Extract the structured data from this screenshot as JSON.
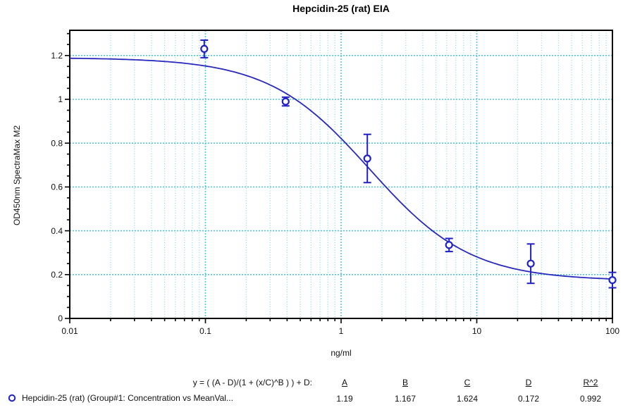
{
  "title": "Hepcidin-25 (rat) EIA",
  "colors": {
    "series": "#2121C6",
    "curve": "#2828BE",
    "grid_minor": "#8ADAEC",
    "grid_major": "#55C9E2",
    "axis": "#000000",
    "background": "#FFFFFF",
    "text": "#111111"
  },
  "chart_data": {
    "type": "scatter",
    "title": "Hepcidin-25 (rat) EIA",
    "xlabel": "ng/ml",
    "ylabel": "OD450nm SpectraMax M2",
    "x_scale": "log",
    "xlim": [
      0.01,
      100
    ],
    "ylim": [
      0,
      1.315
    ],
    "y_major_step": 0.2,
    "y_minor_step": 0.05,
    "x_tick_labels": [
      "0.01",
      "0.1",
      "1",
      "10",
      "100"
    ],
    "x_tick_values": [
      0.01,
      0.1,
      1,
      10,
      100
    ],
    "y_tick_labels": [
      "0",
      "0.2",
      "0.4",
      "0.6",
      "0.8",
      "1",
      "1.2"
    ],
    "y_tick_values": [
      0,
      0.2,
      0.4,
      0.6,
      0.8,
      1,
      1.2
    ],
    "grid": "on",
    "series": [
      {
        "name": "Hepcidin-25 (rat) (Group#1: Concentration vs MeanVal...",
        "marker": "open-circle",
        "points": [
          {
            "x": 0.098,
            "y": 1.23,
            "err": 0.04
          },
          {
            "x": 0.39,
            "y": 0.99,
            "err": 0.02
          },
          {
            "x": 1.56,
            "y": 0.73,
            "err": 0.11
          },
          {
            "x": 6.25,
            "y": 0.335,
            "err": 0.03
          },
          {
            "x": 25,
            "y": 0.25,
            "err": 0.09
          },
          {
            "x": 100,
            "y": 0.175,
            "err": 0.035
          }
        ],
        "fit": {
          "model": "4PL",
          "A": 1.19,
          "B": 1.167,
          "C": 1.624,
          "D": 0.172,
          "R2": 0.992
        }
      }
    ]
  },
  "legend": {
    "formula": "y = ( (A - D)/(1 + (x/C)^B ) ) + D:",
    "series_label": "Hepcidin-25 (rat) (Group#1: Concentration vs MeanVal...",
    "series_marker_icon": "open-circle-icon",
    "param_headers": [
      "A",
      "B",
      "C",
      "D",
      "R^2"
    ],
    "param_values": [
      "1.19",
      "1.167",
      "1.624",
      "0.172",
      "0.992"
    ]
  }
}
